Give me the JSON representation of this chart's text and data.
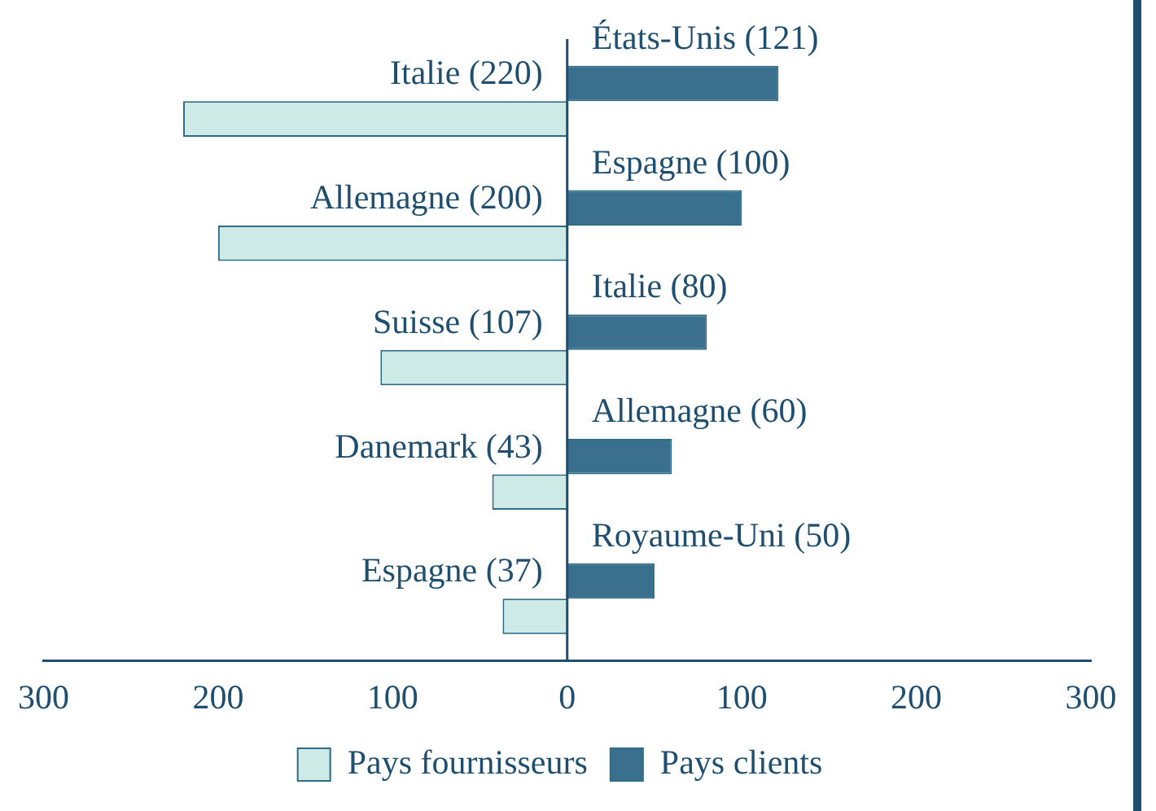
{
  "chart_data": {
    "type": "bar",
    "orientation": "horizontal",
    "categories": [
      null,
      null,
      null,
      null,
      null
    ],
    "series": [
      {
        "name": "Pays clients",
        "color": "#3a6f8e",
        "values": [
          121,
          100,
          80,
          60,
          50
        ],
        "value_labels": [
          "États-Unis (121)",
          "Espagne (100)",
          "Italie (80)",
          "Allemagne (60)",
          "Royaume-Uni (50)"
        ]
      },
      {
        "name": "Pays fournisseurs",
        "color": "#cdeae6",
        "values": [
          -220,
          -200,
          -107,
          -43,
          -37
        ],
        "value_labels": [
          "Italie (220)",
          "Allemagne (200)",
          "Suisse (107)",
          "Danemark (43)",
          "Espagne (37)"
        ]
      }
    ],
    "xlim": [
      -300,
      300
    ],
    "xticks": [
      {
        "value": -300,
        "label": "300"
      },
      {
        "value": -200,
        "label": "200"
      },
      {
        "value": -100,
        "label": "100"
      },
      0,
      100,
      200,
      300
    ],
    "ref_lines": [
      {
        "axis": "x",
        "value": 0,
        "color": "#1f4e6e"
      }
    ],
    "grid": false,
    "legend": "bottom"
  }
}
